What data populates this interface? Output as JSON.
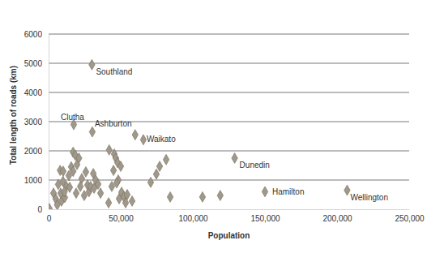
{
  "chart_data": {
    "type": "scatter",
    "x_label": "Population",
    "y_label": "Total length of roads (km)",
    "x": [
      30000,
      17400,
      30300,
      65700,
      129000,
      150000,
      207000,
      60000,
      500,
      3400,
      5000,
      6700,
      6000,
      8000,
      9000,
      8400,
      10000,
      10100,
      11200,
      12300,
      11000,
      14000,
      14600,
      15700,
      17000,
      17000,
      18500,
      19700,
      19100,
      21000,
      22000,
      23000,
      24700,
      25800,
      27000,
      28000,
      29200,
      31000,
      31500,
      32600,
      34300,
      36000,
      42000,
      41600,
      43800,
      45000,
      45500,
      46600,
      47800,
      48300,
      47200,
      48900,
      50000,
      50600,
      52200,
      53400,
      54500,
      57900,
      70800,
      74700,
      77000,
      81500,
      84300,
      106700,
      119000
    ],
    "values": [
      4950,
      2900,
      2650,
      2380,
      1750,
      600,
      650,
      2550,
      20,
      550,
      350,
      850,
      150,
      1330,
      280,
      550,
      950,
      1300,
      400,
      780,
      600,
      1150,
      750,
      1450,
      1300,
      1950,
      1850,
      1530,
      550,
      1750,
      780,
      1050,
      470,
      1280,
      830,
      600,
      780,
      1220,
      720,
      1000,
      860,
      550,
      2030,
      220,
      780,
      1330,
      1890,
      1750,
      1600,
      1000,
      900,
      360,
      1470,
      580,
      420,
      220,
      500,
      280,
      920,
      1200,
      1470,
      1700,
      420,
      420,
      470
    ],
    "color": "#a0998a",
    "marker": "diamond",
    "grid": true,
    "xlim": [
      0,
      250000
    ],
    "xticks": [
      0,
      {
        "value": 50000,
        "label": "50,000"
      },
      {
        "value": 100000,
        "label": "100,000"
      },
      {
        "value": 150000,
        "label": "150,000"
      },
      {
        "value": 200000,
        "label": "200,000"
      },
      {
        "value": 250000,
        "label": "250,000"
      }
    ],
    "ylim": [
      0,
      6000
    ],
    "yticks": [
      0,
      1000,
      2000,
      3000,
      4000,
      5000,
      6000
    ],
    "annotations": [
      {
        "text": "Southland",
        "x": 30000,
        "y": 4950
      },
      {
        "text": "Clutha",
        "x": 17400,
        "y": 2900
      },
      {
        "text": "Ashburton",
        "x": 30300,
        "y": 2650
      },
      {
        "text": "Waikato",
        "x": 65700,
        "y": 2380
      },
      {
        "text": "Dunedin",
        "x": 129000,
        "y": 1750
      },
      {
        "text": "Hamilton",
        "x": 150000,
        "y": 600
      },
      {
        "text": "Wellington",
        "x": 207000,
        "y": 650
      }
    ]
  }
}
